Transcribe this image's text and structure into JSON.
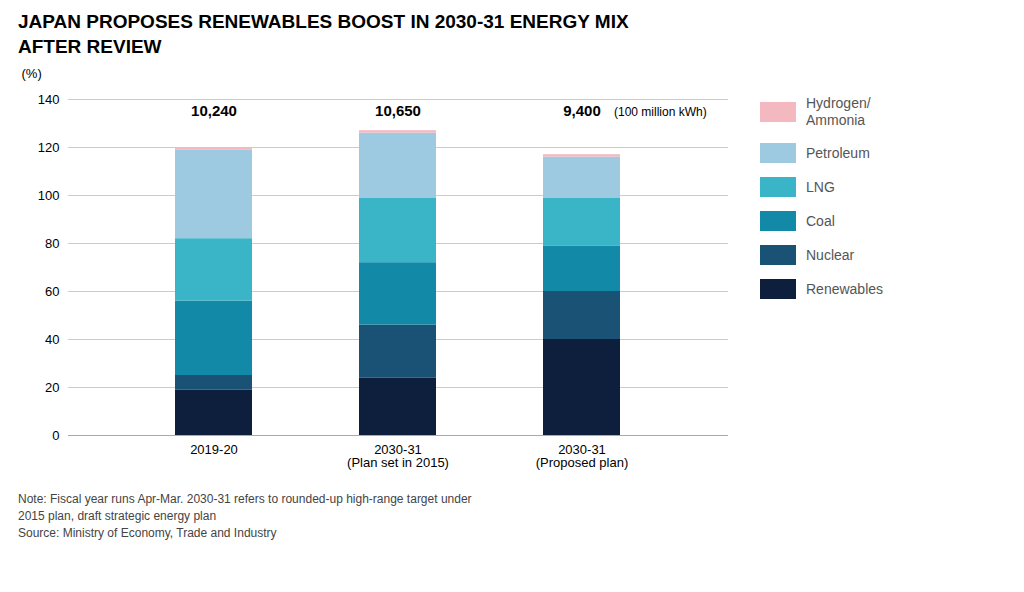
{
  "chart_data": {
    "type": "bar",
    "stacked": true,
    "title": "JAPAN PROPOSES RENEWABLES BOOST IN 2030-31 ENERGY MIX\nAFTER REVIEW",
    "y_label": "(%)",
    "categories": [
      "2019-20",
      "2030-31\n(Plan set in 2015)",
      "2030-31\n(Proposed plan)"
    ],
    "series": [
      {
        "name": "Renewables",
        "color": "#0d1f3c",
        "values": [
          19,
          24,
          40
        ]
      },
      {
        "name": "Nuclear",
        "color": "#1a5276",
        "values": [
          6,
          22,
          20
        ]
      },
      {
        "name": "Coal",
        "color": "#1389a8",
        "values": [
          31,
          26,
          19
        ]
      },
      {
        "name": "LNG",
        "color": "#3ab5c8",
        "values": [
          26,
          27,
          20
        ]
      },
      {
        "name": "Petroleum",
        "color": "#9ecae1",
        "values": [
          37,
          27,
          17
        ]
      },
      {
        "name": "Hydrogen/\nAmmonia",
        "color": "#f4b8c1",
        "values": [
          1,
          1,
          1
        ]
      }
    ],
    "totals": [
      10240,
      10650,
      9400
    ],
    "totals_labels": [
      "10,240",
      "10,650",
      "9,400"
    ],
    "totals_unit": "(100 million kWh)",
    "ylim": [
      0,
      140
    ],
    "yticks": [
      0,
      20,
      40,
      60,
      80,
      100,
      120,
      140
    ],
    "grid": true,
    "legend": "right",
    "note": "Note: Fiscal year runs Apr-Mar. 2030-31 refers to rounded-up high-range target under\n2015 plan, draft strategic energy plan\nSource: Ministry of Economy, Trade and Industry"
  }
}
